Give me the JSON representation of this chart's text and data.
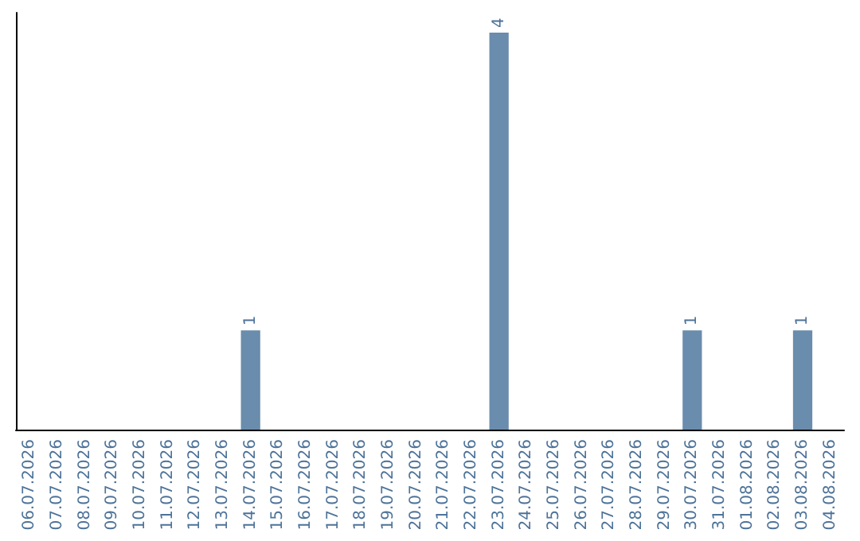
{
  "chart_data": {
    "type": "bar",
    "categories": [
      "06.07.2026",
      "07.07.2026",
      "08.07.2026",
      "09.07.2026",
      "10.07.2026",
      "11.07.2026",
      "12.07.2026",
      "13.07.2026",
      "14.07.2026",
      "15.07.2026",
      "16.07.2026",
      "17.07.2026",
      "18.07.2026",
      "19.07.2026",
      "20.07.2026",
      "21.07.2026",
      "22.07.2026",
      "23.07.2026",
      "24.07.2026",
      "25.07.2026",
      "26.07.2026",
      "27.07.2026",
      "28.07.2026",
      "29.07.2026",
      "30.07.2026",
      "31.07.2026",
      "01.08.2026",
      "02.08.2026",
      "03.08.2026",
      "04.08.2026"
    ],
    "values": [
      0,
      0,
      0,
      0,
      0,
      0,
      0,
      0,
      1,
      0,
      0,
      0,
      0,
      0,
      0,
      0,
      0,
      4,
      0,
      0,
      0,
      0,
      0,
      0,
      1,
      0,
      0,
      0,
      1,
      0
    ],
    "value_labels": [
      null,
      null,
      null,
      null,
      null,
      null,
      null,
      null,
      "1",
      null,
      null,
      null,
      null,
      null,
      null,
      null,
      null,
      "4",
      null,
      null,
      null,
      null,
      null,
      null,
      "1",
      null,
      null,
      null,
      "1",
      null
    ],
    "color": "#6a8cad",
    "grid": false,
    "tick_labels": "x"
  }
}
